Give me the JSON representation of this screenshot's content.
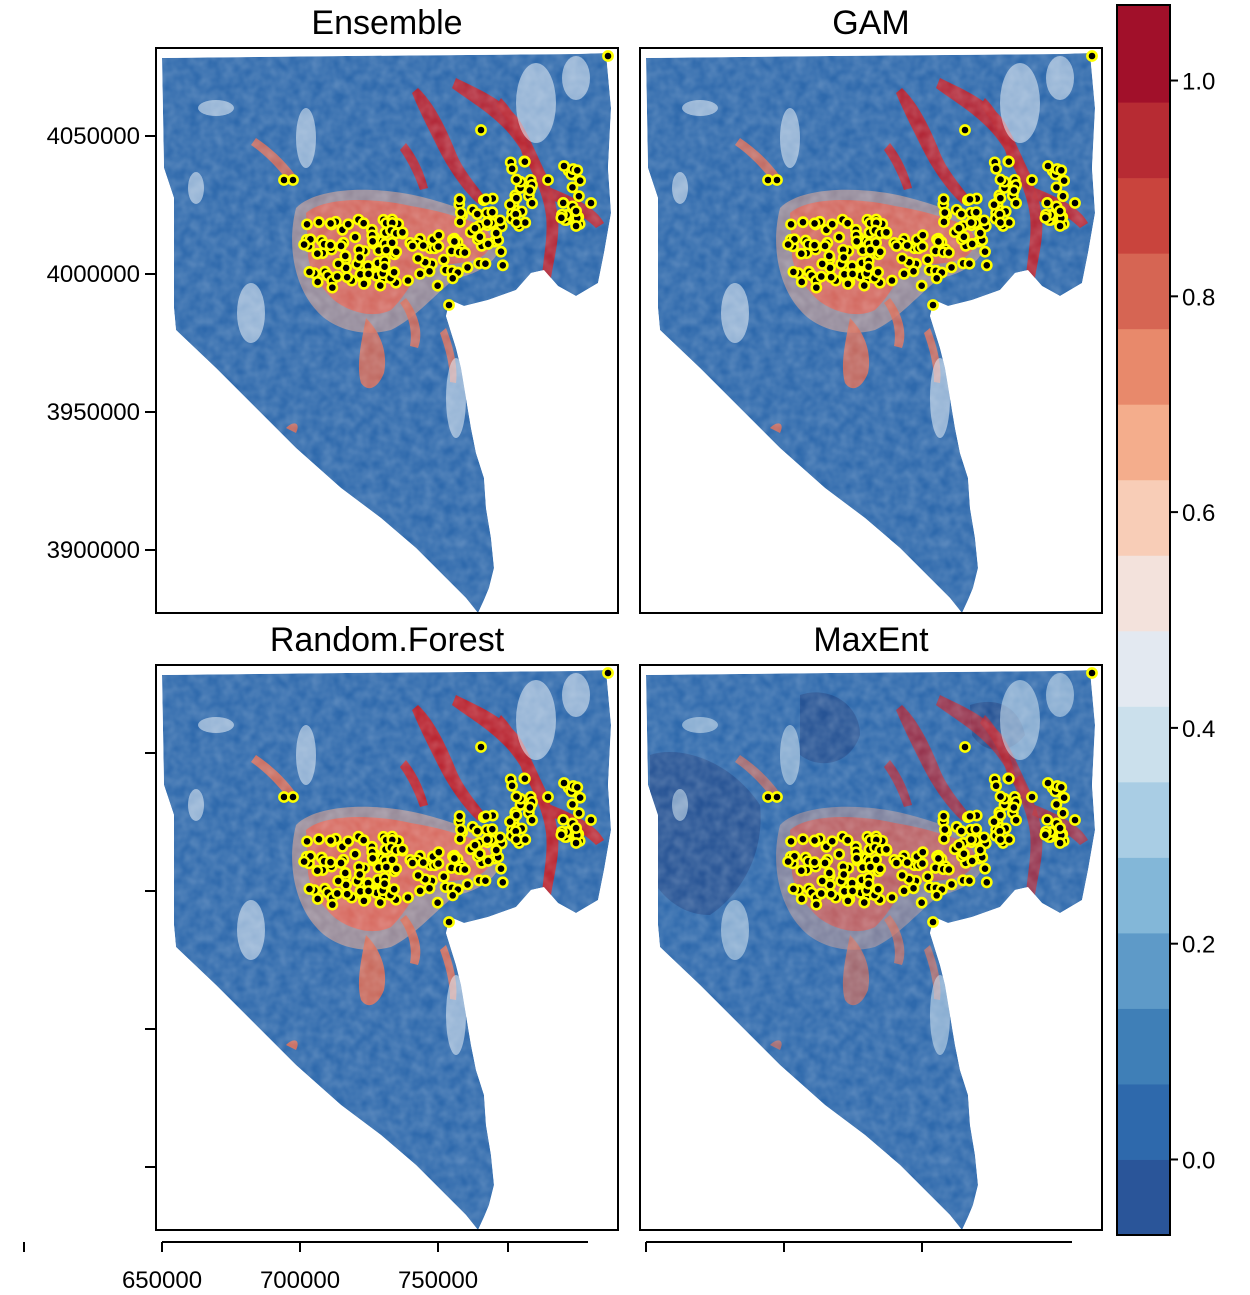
{
  "panels": [
    {
      "id": "ensemble",
      "title": "Ensemble",
      "model": "ensemble"
    },
    {
      "id": "gam",
      "title": "GAM",
      "model": "gam"
    },
    {
      "id": "random-forest",
      "title": "Random.Forest",
      "model": "rf"
    },
    {
      "id": "maxent",
      "title": "MaxEnt",
      "model": "maxent"
    }
  ],
  "axes": {
    "x_ticks": [
      650000,
      700000,
      750000
    ],
    "x_tick_labels": [
      "650000",
      "700000",
      "750000"
    ],
    "y_ticks": [
      4050000,
      4000000,
      3950000,
      3900000
    ],
    "y_tick_labels": [
      "4050000",
      "4000000",
      "3950000",
      "3900000"
    ],
    "x_range": [
      630000,
      800000
    ],
    "y_range": [
      3880000,
      4080000
    ]
  },
  "colorbar": {
    "range": [
      -0.07,
      1.07
    ],
    "breaks": [
      -0.07,
      0.0,
      0.07,
      0.14,
      0.21,
      0.28,
      0.35,
      0.42,
      0.49,
      0.56,
      0.63,
      0.7,
      0.77,
      0.84,
      0.91,
      0.98,
      1.07
    ],
    "colors": [
      "#2a5599",
      "#2e69ac",
      "#3f7fb7",
      "#5e9ac8",
      "#83b7d8",
      "#a9cde4",
      "#cbe0ec",
      "#e3e9f1",
      "#f3e2dc",
      "#f8cdb7",
      "#f4ad8c",
      "#e8896b",
      "#d66553",
      "#c9443d",
      "#b72b33",
      "#a1102a"
    ],
    "tick_values": [
      0.0,
      0.2,
      0.4,
      0.6,
      0.8,
      1.0
    ],
    "tick_labels": [
      "0.0",
      "0.2",
      "0.4",
      "0.6",
      "0.8",
      "1.0"
    ]
  },
  "colors": {
    "map_base": "#2e69ac",
    "point_fill": "#000000",
    "point_ring": "#ffff00"
  }
}
